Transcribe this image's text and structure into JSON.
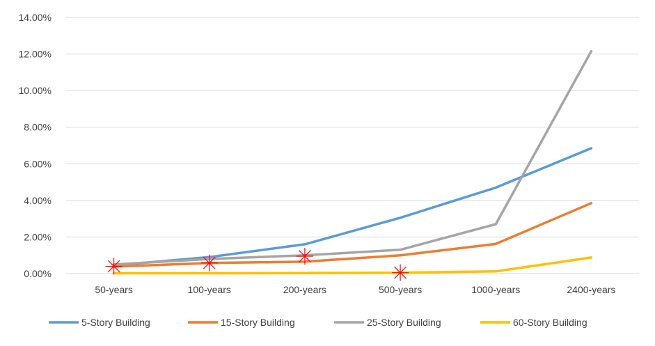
{
  "chart_data": {
    "type": "line",
    "categories": [
      "50-years",
      "100-years",
      "200-years",
      "500-years",
      "1000-years",
      "2400-years"
    ],
    "ylim": [
      0,
      14
    ],
    "yticks": [
      "0.00%",
      "2.00%",
      "4.00%",
      "6.00%",
      "8.00%",
      "10.00%",
      "12.00%",
      "14.00%"
    ],
    "ytick_values": [
      0,
      2,
      4,
      6,
      8,
      10,
      12,
      14
    ],
    "grid": "horizontal",
    "legend_position": "bottom",
    "series": [
      {
        "name": "5-Story Building",
        "color": "#5B9BD5",
        "values": [
          0.45,
          0.9,
          1.6,
          3.05,
          4.7,
          6.85
        ]
      },
      {
        "name": "15-Story Building",
        "color": "#ED7D31",
        "values": [
          0.38,
          0.58,
          0.65,
          1.0,
          1.62,
          3.85
        ]
      },
      {
        "name": "25-Story Building",
        "color": "#A5A5A5",
        "values": [
          0.5,
          0.8,
          1.0,
          1.3,
          2.7,
          12.15
        ]
      },
      {
        "name": "60-Story Building",
        "color": "#FFC000",
        "values": [
          0.02,
          0.02,
          0.03,
          0.05,
          0.12,
          0.88
        ]
      }
    ],
    "markers": [
      {
        "category": "50-years",
        "value": 0.4,
        "symbol": "asterisk",
        "color": "#FF0000"
      },
      {
        "category": "100-years",
        "value": 0.58,
        "symbol": "asterisk",
        "color": "#FF0000"
      },
      {
        "category": "200-years",
        "value": 0.95,
        "symbol": "asterisk",
        "color": "#FF0000"
      },
      {
        "category": "500-years",
        "value": 0.05,
        "symbol": "asterisk",
        "color": "#FF0000"
      }
    ],
    "gridline_color": "#D9D9D9",
    "axis_label_color": "#404040"
  }
}
